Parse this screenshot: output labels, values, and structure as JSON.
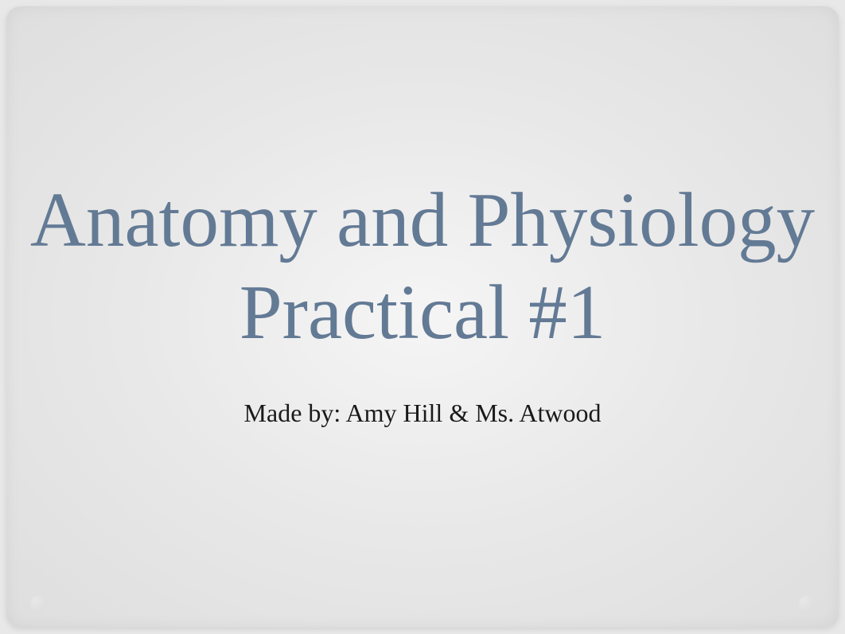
{
  "slide": {
    "title": "Anatomy and Physiology Practical #1",
    "subtitle": "Made by: Amy Hill & Ms. Atwood",
    "colors": {
      "title_color": "#637a95",
      "subtitle_color": "#1a1a1a",
      "background_gradient_center": "#f5f5f5",
      "background_gradient_mid": "#e8e8e8",
      "background_gradient_edge": "#dedede"
    },
    "typography": {
      "title_fontsize": 97,
      "subtitle_fontsize": 32,
      "font_family": "Georgia, Times New Roman, serif"
    }
  }
}
